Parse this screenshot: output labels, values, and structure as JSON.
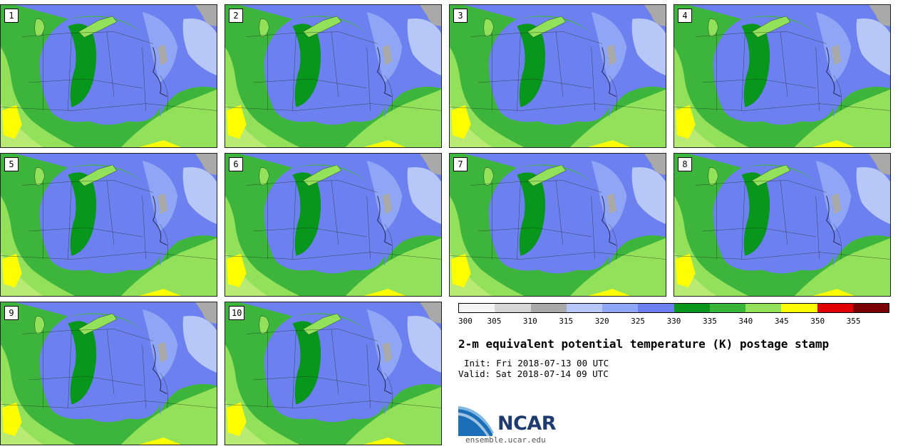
{
  "stamps": [
    {
      "label": "1"
    },
    {
      "label": "2"
    },
    {
      "label": "3"
    },
    {
      "label": "4"
    },
    {
      "label": "5"
    },
    {
      "label": "6"
    },
    {
      "label": "7"
    },
    {
      "label": "8"
    },
    {
      "label": "9"
    },
    {
      "label": "10"
    }
  ],
  "colorbar": {
    "ticks": [
      "300",
      "305",
      "310",
      "315",
      "320",
      "325",
      "330",
      "335",
      "340",
      "345",
      "350",
      "355"
    ],
    "colors": [
      "#f4f4f4",
      "#d6d6d6",
      "#a9a9a9",
      "#b7c8f8",
      "#8fa5f5",
      "#6d80ef",
      "#08961c",
      "#39b539",
      "#93e05a",
      "#fefe00",
      "#e00000",
      "#7a0000"
    ]
  },
  "title": "2-m equivalent potential temperature (K) postage stamp",
  "init_line": "Init: Fri 2018-07-13 00 UTC",
  "valid_line": "Valid: Sat 2018-07-14 09 UTC",
  "logo": {
    "text": "NCAR",
    "site": "ensemble.ucar.edu"
  }
}
